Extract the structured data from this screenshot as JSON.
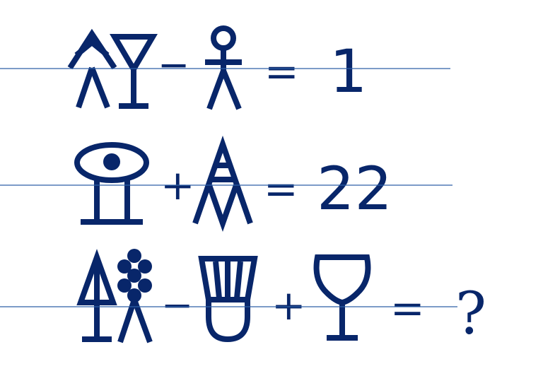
{
  "puzzle": {
    "equations": [
      {
        "symbols": [
          "tree-person-glyph",
          "cocktail-glass-glyph",
          "person-glyph"
        ],
        "operators": [
          "−",
          "="
        ],
        "result": "1"
      },
      {
        "symbols": [
          "eye-pedestal-glyph",
          "ladder-triangle-glyph"
        ],
        "operators": [
          "+",
          "="
        ],
        "result": "22"
      },
      {
        "symbols": [
          "tree-glyph",
          "grapes-person-glyph",
          "shuttlecock-glyph",
          "wine-glass-glyph"
        ],
        "operators": [
          "−",
          "+",
          "="
        ],
        "result": "?"
      }
    ],
    "colors": {
      "ink": "#08266a",
      "guide_line": "#2d5fa8",
      "background": "#ffffff"
    }
  }
}
